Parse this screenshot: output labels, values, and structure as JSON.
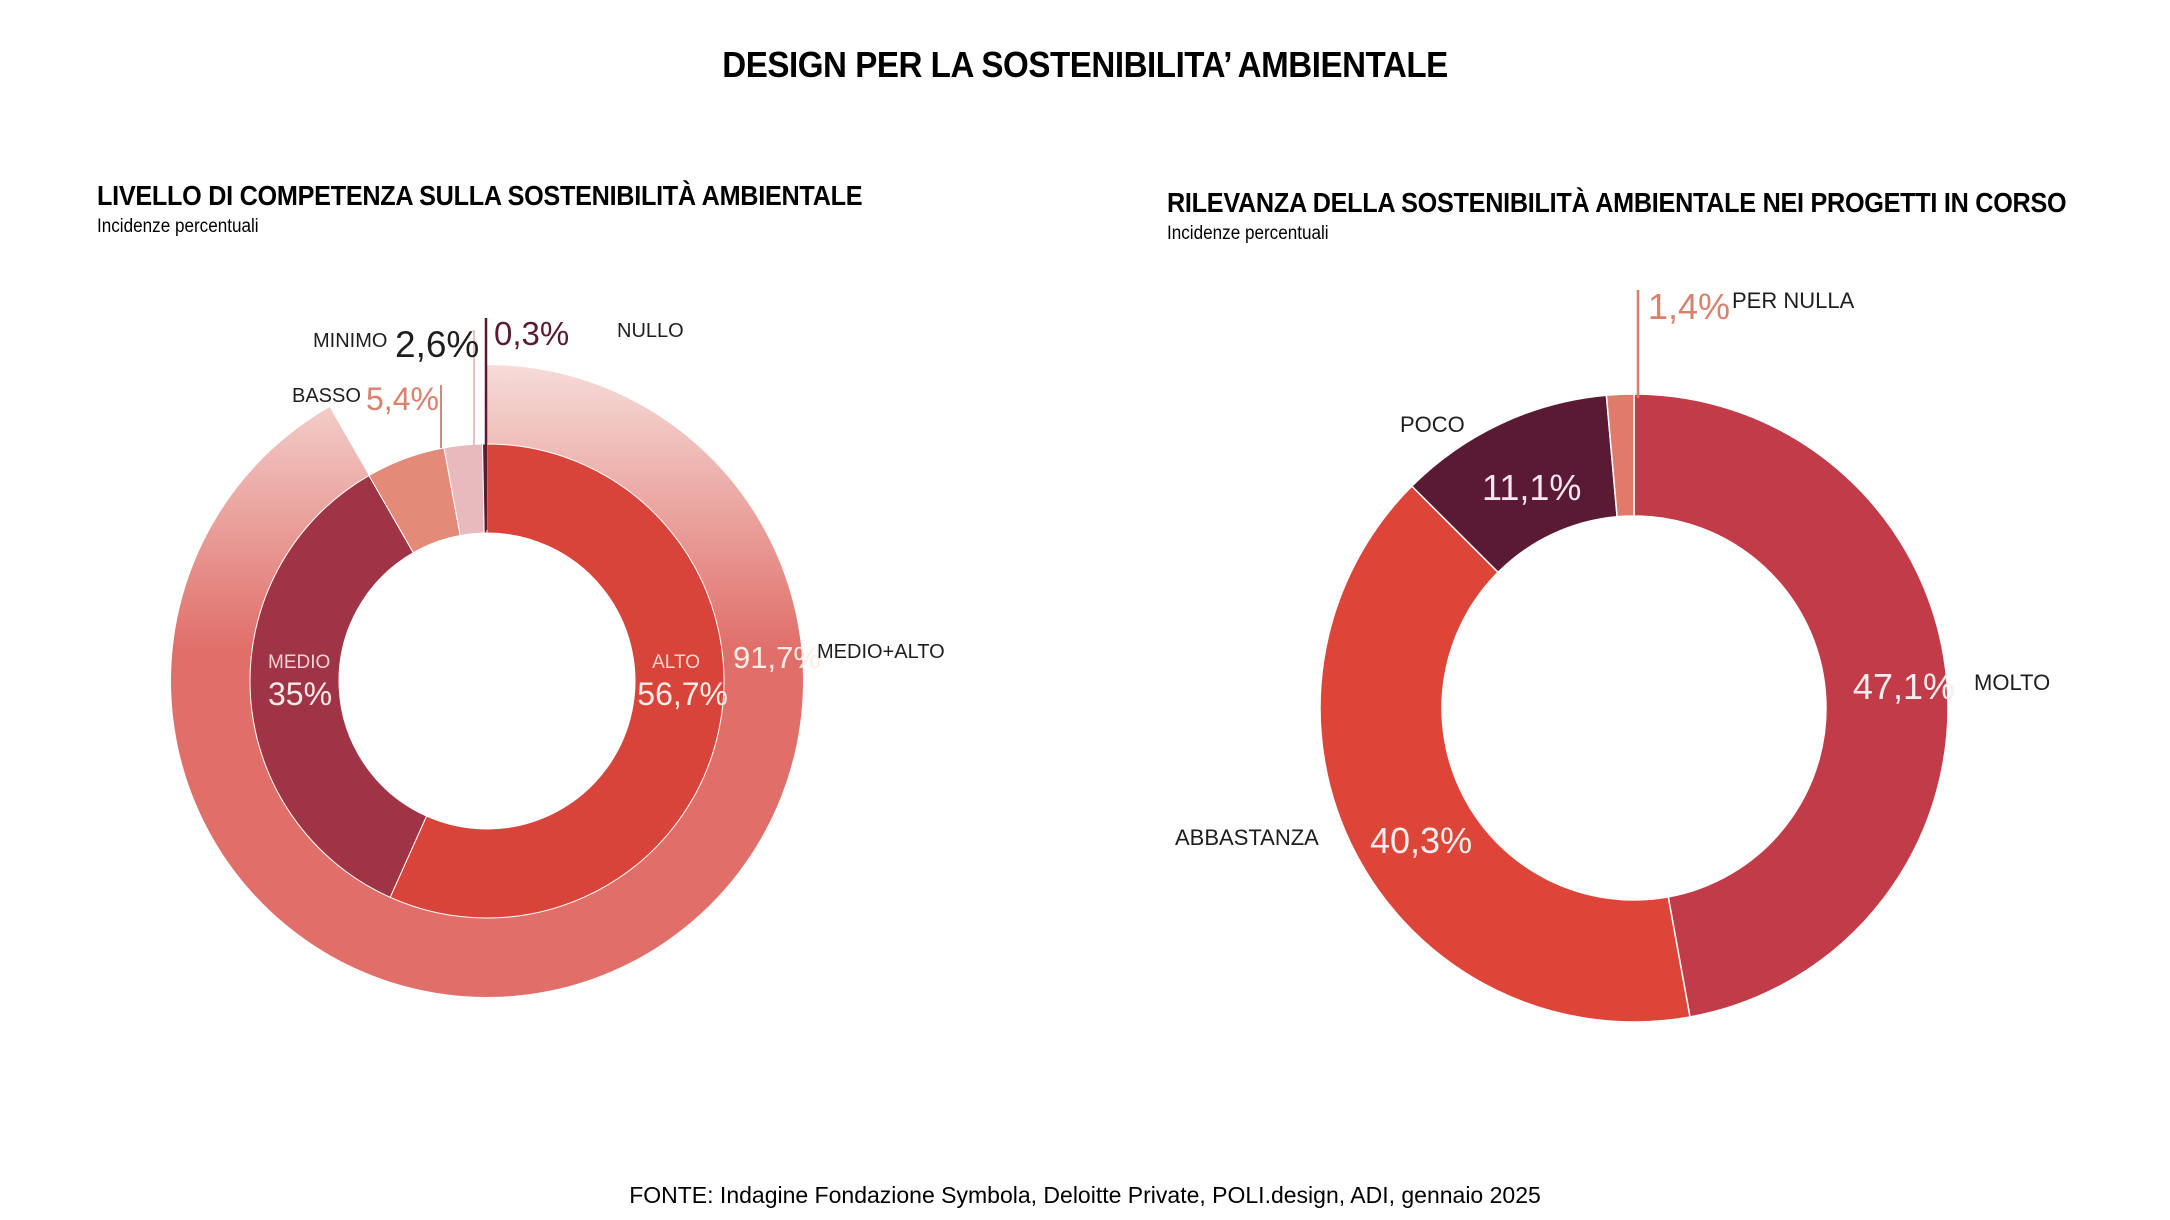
{
  "page": {
    "title": "DESIGN PER LA SOSTENIBILITA’ AMBIENTALE",
    "footer": "FONTE: Indagine Fondazione Symbola, Deloitte Private, POLI.design, ADI, gennaio 2025"
  },
  "chart_data": [
    {
      "type": "pie",
      "variant": "nested-donut",
      "title": "LIVELLO DI COMPETENZA SULLA SOSTENIBILITÀ AMBIENTALE",
      "subtitle": "Incidenze percentuali",
      "unit": "%",
      "inner_ring": [
        {
          "name": "ALTO",
          "value": 56.7,
          "label": "56,7%",
          "color": "#d9443a"
        },
        {
          "name": "MEDIO",
          "value": 35.0,
          "label": "35%",
          "color": "#9f3446"
        },
        {
          "name": "BASSO",
          "value": 5.4,
          "label": "5,4%",
          "color": "#e48a78"
        },
        {
          "name": "MINIMO",
          "value": 2.6,
          "label": "2,6%",
          "color": "#e8b9bd"
        },
        {
          "name": "NULLO",
          "value": 0.3,
          "label": "0,3%",
          "color": "#5a1a33"
        }
      ],
      "outer_ring": [
        {
          "name": "MEDIO+ALTO",
          "value": 91.7,
          "label": "91,7%",
          "color": "#e06f6a"
        }
      ],
      "label_colors": {
        "BASSO": "#d9806f",
        "MINIMO": "#1e1e1e",
        "NULLO": "#5a1a33",
        "category": "#1e1e1e"
      }
    },
    {
      "type": "pie",
      "variant": "donut",
      "title": "RILEVANZA DELLA SOSTENIBILITÀ AMBIENTALE NEI PROGETTI IN CORSO",
      "subtitle": "Incidenze percentuali",
      "unit": "%",
      "slices": [
        {
          "name": "MOLTO",
          "value": 47.1,
          "label": "47,1%",
          "color": "#c23b48"
        },
        {
          "name": "ABBASTANZA",
          "value": 40.3,
          "label": "40,3%",
          "color": "#dc4538"
        },
        {
          "name": "POCO",
          "value": 11.1,
          "label": "11,1%",
          "color": "#5a1a33"
        },
        {
          "name": "PER NULLA",
          "value": 1.4,
          "label": "1,4%",
          "color": "#e07a6a"
        }
      ],
      "label_colors": {
        "PER NULLA": "#d9806f",
        "category": "#1e1e1e"
      }
    }
  ]
}
